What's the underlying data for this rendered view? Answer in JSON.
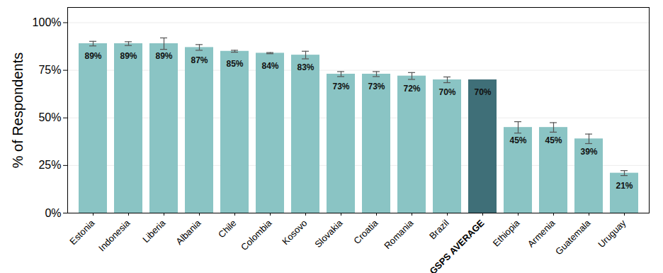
{
  "chart_data": {
    "type": "bar",
    "y_label": "% of Respondents",
    "categories": [
      "Estonia",
      "Indonesia",
      "Liberia",
      "Albania",
      "Chile",
      "Colombia",
      "Kosovo",
      "Slovakia",
      "Croatia",
      "Romania",
      "Brazil",
      "GSPS AVERAGE",
      "Ethiopia",
      "Armenia",
      "Guatemala",
      "Uruguay"
    ],
    "values": [
      89,
      89,
      89,
      87,
      85,
      84,
      83,
      73,
      73,
      72,
      70,
      70,
      45,
      45,
      39,
      21
    ],
    "value_labels": [
      "89%",
      "89%",
      "89%",
      "87%",
      "85%",
      "84%",
      "83%",
      "73%",
      "73%",
      "72%",
      "70%",
      "70%",
      "45%",
      "45%",
      "39%",
      "21%"
    ],
    "errors": [
      1.2,
      1.0,
      3.0,
      1.5,
      0.5,
      0.3,
      2.0,
      1.3,
      1.3,
      1.8,
      1.5,
      null,
      3.0,
      2.5,
      2.5,
      1.3
    ],
    "colors": [
      "#8ac4c4",
      "#8ac4c4",
      "#8ac4c4",
      "#8ac4c4",
      "#8ac4c4",
      "#8ac4c4",
      "#8ac4c4",
      "#8ac4c4",
      "#8ac4c4",
      "#8ac4c4",
      "#8ac4c4",
      "#3f6f78",
      "#8ac4c4",
      "#8ac4c4",
      "#8ac4c4",
      "#8ac4c4"
    ],
    "ylim": [
      0,
      108
    ],
    "yticks": [
      {
        "value": 0,
        "label": "0%"
      },
      {
        "value": 25,
        "label": "25%"
      },
      {
        "value": 50,
        "label": "50%"
      },
      {
        "value": 75,
        "label": "75%"
      },
      {
        "value": 100,
        "label": "100%"
      }
    ],
    "grid": true,
    "data_labels": true
  }
}
